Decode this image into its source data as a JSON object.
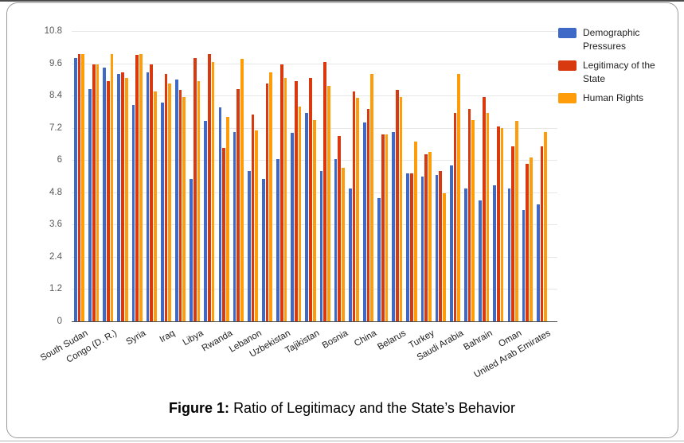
{
  "figure": {
    "caption_label": "Figure 1:",
    "caption_text": "Ratio of Legitimacy and the State’s Behavior"
  },
  "chart_data": {
    "type": "bar",
    "title": "",
    "xlabel": "",
    "ylabel": "",
    "ylim": [
      0,
      10.8
    ],
    "grid": true,
    "legend_position": "top-right",
    "y_ticks": [
      "0",
      "1.2",
      "2.4",
      "3.6",
      "4.8",
      "6",
      "7.2",
      "8.4",
      "9.6",
      "10.8"
    ],
    "x_tick_labels": [
      "South Sudan",
      "Congo (D. R.)",
      "Syria",
      "Iraq",
      "Libya",
      "Rwanda",
      "Lebanon",
      "Uzbekistan",
      "Tajikistan",
      "Bosnia",
      "China",
      "Belarus",
      "Turkey",
      "Saudi Arabia",
      "Bahrain",
      "Oman",
      "United Arab Emirates"
    ],
    "label_every_other_group": true,
    "categories": [
      "South Sudan",
      "",
      "Congo (D. R.)",
      "",
      "Syria",
      "",
      "Iraq",
      "",
      "Libya",
      "",
      "Rwanda",
      "",
      "Lebanon",
      "",
      "Uzbekistan",
      "",
      "Tajikistan",
      "",
      "Bosnia",
      "",
      "China",
      "",
      "Belarus",
      "",
      "Turkey",
      "",
      "Saudi Arabia",
      "",
      "Bahrain",
      "",
      "Oman",
      "",
      "United Arab Emirates"
    ],
    "series": [
      {
        "name": "Demographic Pressures",
        "color": "#3E69C6",
        "values": [
          9.8,
          8.65,
          9.45,
          9.2,
          8.05,
          9.25,
          8.15,
          9.0,
          5.3,
          7.45,
          7.95,
          7.05,
          5.6,
          5.3,
          6.05,
          7.0,
          7.75,
          5.6,
          6.05,
          4.95,
          7.4,
          4.6,
          7.05,
          5.5,
          5.4,
          5.45,
          5.8,
          4.95,
          4.5,
          5.05,
          4.95,
          4.15,
          4.35
        ]
      },
      {
        "name": "Legitimacy of the State",
        "color": "#D8390F",
        "values": [
          9.95,
          9.55,
          8.95,
          9.25,
          9.9,
          9.55,
          9.2,
          8.6,
          9.8,
          9.95,
          6.45,
          8.65,
          7.7,
          8.85,
          9.55,
          8.95,
          9.05,
          9.65,
          6.9,
          8.55,
          7.9,
          6.95,
          8.6,
          5.5,
          6.2,
          5.6,
          7.75,
          7.9,
          8.35,
          7.25,
          6.5,
          5.85,
          6.5
        ]
      },
      {
        "name": "Human Rights",
        "color": "#FF9C0A",
        "values": [
          9.95,
          9.55,
          9.95,
          9.05,
          9.95,
          8.55,
          8.85,
          8.35,
          8.95,
          9.65,
          7.6,
          9.75,
          7.1,
          9.25,
          9.05,
          8.0,
          7.5,
          8.75,
          5.7,
          8.3,
          9.2,
          6.95,
          8.35,
          6.7,
          6.3,
          4.75,
          9.2,
          7.5,
          7.75,
          7.2,
          7.45,
          6.1,
          7.05
        ]
      }
    ]
  }
}
